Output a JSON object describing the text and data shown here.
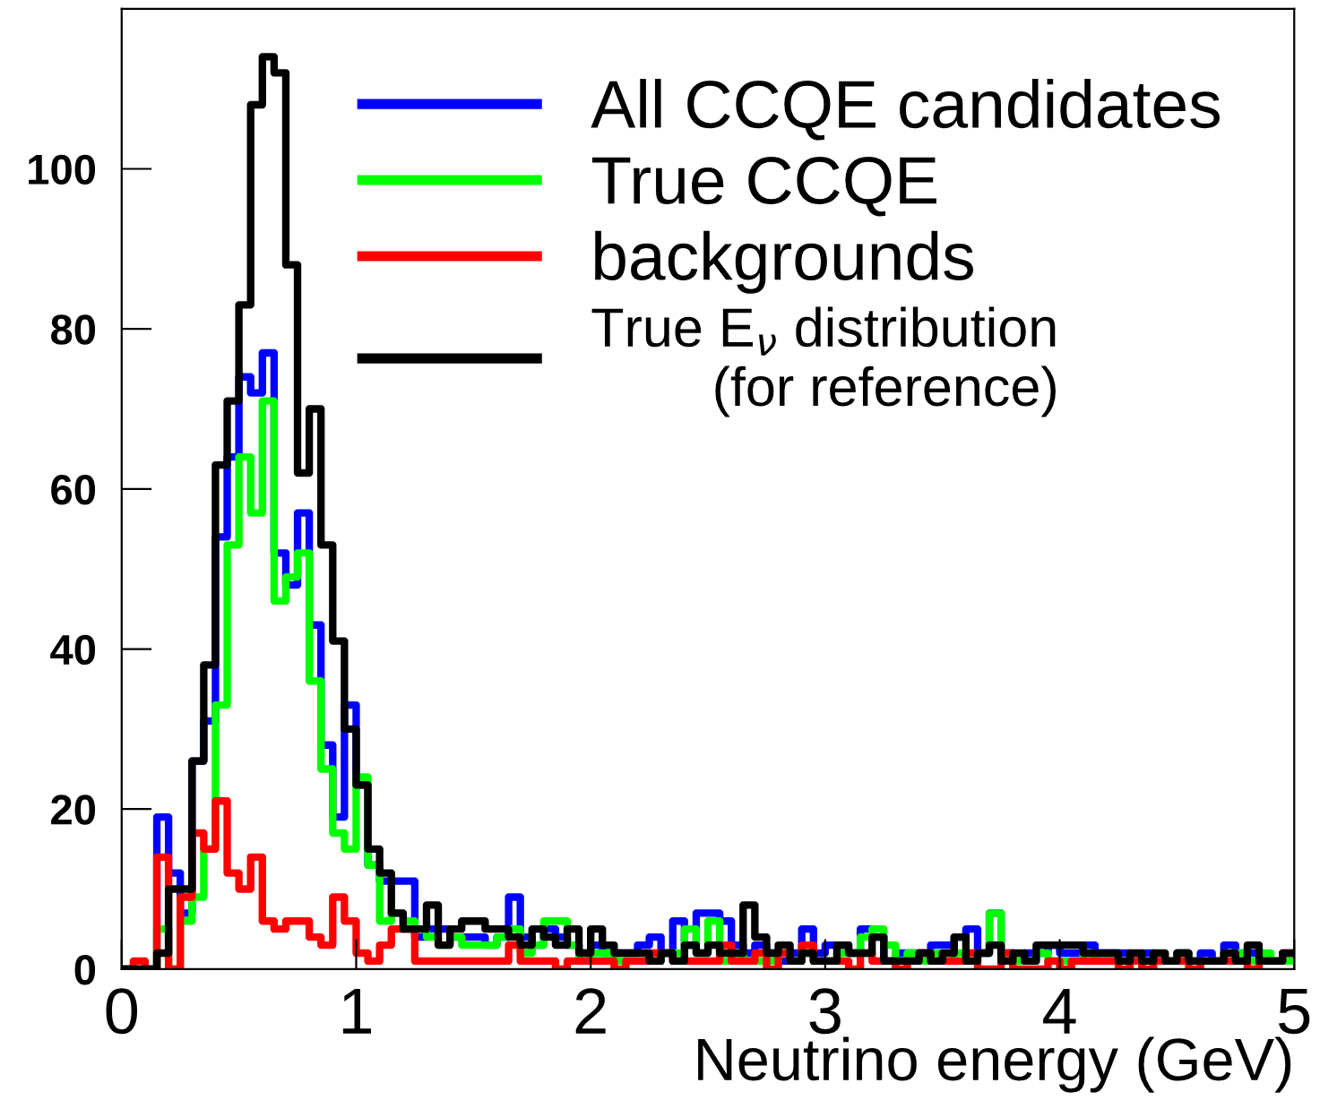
{
  "chart_data": {
    "type": "histogram",
    "xlabel": "Neutrino energy (GeV)",
    "bins": [
      0,
      0.05,
      0.1,
      0.15,
      0.2,
      0.25,
      0.3,
      0.35,
      0.4,
      0.45,
      0.5,
      0.55,
      0.6,
      0.65,
      0.7,
      0.75,
      0.8,
      0.85,
      0.9,
      0.95,
      1,
      1.05,
      1.1,
      1.15,
      1.2,
      1.25,
      1.3,
      1.35,
      1.4,
      1.45,
      1.5,
      1.55,
      1.6,
      1.65,
      1.7,
      1.75,
      1.8,
      1.85,
      1.9,
      1.95,
      2,
      2.05,
      2.1,
      2.15,
      2.2,
      2.25,
      2.3,
      2.35,
      2.4,
      2.45,
      2.5,
      2.55,
      2.6,
      2.65,
      2.7,
      2.75,
      2.8,
      2.85,
      2.9,
      2.95,
      3,
      3.05,
      3.1,
      3.15,
      3.2,
      3.25,
      3.3,
      3.35,
      3.4,
      3.45,
      3.5,
      3.55,
      3.6,
      3.65,
      3.7,
      3.75,
      3.8,
      3.85,
      3.9,
      3.95,
      4,
      4.05,
      4.1,
      4.15,
      4.2,
      4.25,
      4.3,
      4.35,
      4.4,
      4.45,
      4.5,
      4.55,
      4.6,
      4.65,
      4.7,
      4.75,
      4.8,
      4.85,
      4.9,
      4.95,
      5
    ],
    "series": [
      {
        "name": "All CCQE candidates",
        "color": "#0000ff",
        "values": [
          0,
          0,
          0,
          19,
          12,
          7,
          26,
          31,
          54,
          64,
          74,
          72,
          77,
          52,
          48,
          57,
          43,
          28,
          19,
          33,
          23,
          13,
          11,
          11,
          11,
          4,
          5,
          5,
          4,
          4,
          4,
          3,
          4,
          9,
          4,
          3,
          5,
          4,
          3,
          2,
          3,
          2,
          2,
          2,
          3,
          4,
          2,
          6,
          3,
          7,
          7,
          6,
          3,
          2,
          3,
          2,
          1,
          2,
          5,
          2,
          3,
          3,
          2,
          5,
          4,
          1,
          2,
          2,
          2,
          3,
          3,
          4,
          5,
          2,
          7,
          2,
          1,
          2,
          2,
          3,
          2,
          2,
          3,
          2,
          2,
          2,
          1,
          2,
          1,
          1,
          2,
          1,
          2,
          1,
          3,
          2,
          2,
          1,
          1,
          1
        ]
      },
      {
        "name": "True CCQE",
        "color": "#00ff00",
        "values": [
          0,
          0,
          0,
          5,
          0,
          6,
          9,
          15,
          33,
          53,
          64,
          57,
          71,
          46,
          49,
          52,
          36,
          25,
          17,
          15,
          24,
          13,
          6,
          7,
          6,
          5,
          4,
          3,
          4,
          3,
          3,
          3,
          4,
          5,
          2,
          3,
          6,
          6,
          3,
          1,
          2,
          2,
          1,
          1,
          1,
          1,
          2,
          2,
          5,
          2,
          6,
          1,
          2,
          1,
          1,
          1,
          2,
          1,
          2,
          1,
          1,
          2,
          2,
          4,
          5,
          3,
          1,
          2,
          1,
          2,
          1,
          2,
          1,
          2,
          7,
          1,
          1,
          1,
          2,
          1,
          1,
          1,
          2,
          1,
          1,
          1,
          1,
          1,
          1,
          1,
          2,
          1,
          1,
          1,
          2,
          2,
          1,
          2,
          1,
          1
        ]
      },
      {
        "name": "backgrounds",
        "color": "#ff0000",
        "values": [
          0,
          1,
          0,
          14,
          0,
          9,
          17,
          15,
          21,
          12,
          10,
          14,
          6,
          5,
          6,
          6,
          4,
          3,
          9,
          6,
          2,
          1,
          3,
          5,
          5,
          1,
          1,
          1,
          1,
          1,
          1,
          1,
          1,
          3,
          1,
          1,
          1,
          0,
          1,
          1,
          1,
          1,
          0,
          1,
          1,
          2,
          2,
          1,
          1,
          1,
          1,
          3,
          1,
          1,
          2,
          0,
          2,
          1,
          3,
          1,
          1,
          1,
          0,
          2,
          1,
          1,
          0,
          1,
          2,
          1,
          1,
          1,
          2,
          0,
          0,
          2,
          0,
          0,
          0,
          1,
          0,
          1,
          1,
          1,
          1,
          0,
          1,
          0,
          1,
          1,
          1,
          0,
          1,
          1,
          1,
          1,
          0,
          1,
          1,
          2
        ]
      },
      {
        "name": "True E$_{ν}$ distribution\n(for reference)",
        "color": "#000000",
        "values": [
          0,
          0,
          0,
          2,
          10,
          10,
          26,
          38,
          63,
          71,
          83,
          108,
          114,
          112,
          88,
          62,
          70,
          53,
          41,
          30,
          23,
          15,
          12,
          7,
          5,
          5,
          8,
          3,
          5,
          6,
          6,
          5,
          5,
          4,
          3,
          5,
          4,
          3,
          5,
          2,
          5,
          3,
          2,
          2,
          2,
          1,
          2,
          1,
          3,
          2,
          3,
          2,
          2,
          8,
          4,
          2,
          3,
          1,
          2,
          1,
          1,
          3,
          2,
          2,
          4,
          1,
          1,
          1,
          2,
          1,
          2,
          4,
          1,
          2,
          3,
          1,
          2,
          1,
          3,
          3,
          3,
          3,
          2,
          2,
          2,
          1,
          2,
          1,
          2,
          1,
          2,
          1,
          1,
          1,
          2,
          1,
          3,
          1,
          1,
          2
        ]
      }
    ],
    "xlim": [
      0,
      5
    ],
    "xticks": [
      0,
      1,
      2,
      3,
      4,
      5
    ],
    "ylim": [
      0,
      120
    ],
    "yticks": [
      0,
      20,
      40,
      60,
      80,
      100
    ],
    "legend": "top right",
    "grid": false
  }
}
